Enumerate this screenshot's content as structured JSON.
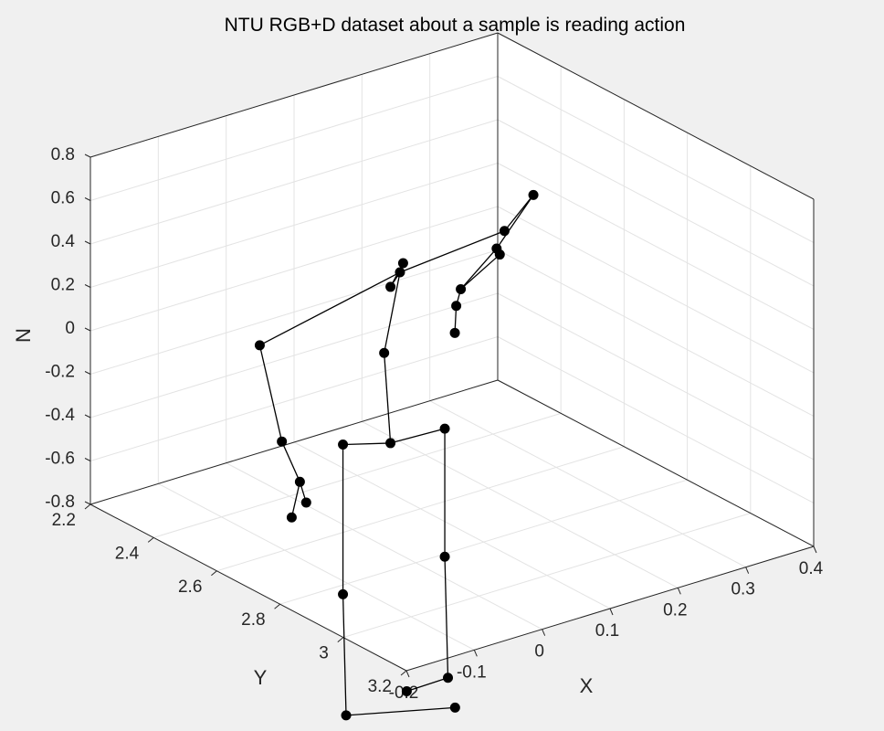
{
  "chart_data": {
    "type": "scatter3d",
    "title": "NTU RGB+D dataset about a sample is reading action",
    "xlabel": "X",
    "ylabel": "Y",
    "zlabel": "N",
    "xlim": [
      -0.2,
      0.4
    ],
    "ylim": [
      2.2,
      3.2
    ],
    "zlim": [
      -0.8,
      0.8
    ],
    "xticks": [
      "-0.2",
      "-0.1",
      "0",
      "0.1",
      "0.2",
      "0.3",
      "0.4"
    ],
    "yticks": [
      "2.2",
      "2.4",
      "2.6",
      "2.8",
      "3",
      "3.2"
    ],
    "zticks": [
      "-0.8",
      "-0.6",
      "-0.4",
      "-0.2",
      "0",
      "0.2",
      "0.4",
      "0.6",
      "0.8"
    ],
    "grid": true,
    "colors": {
      "background": "#f0f0f0",
      "axes_face": "#ffffff",
      "marker": "#000000",
      "line": "#000000",
      "grid": "#e3e3e3",
      "box": "#262626"
    },
    "joints": [
      {
        "x": 0.0,
        "y": 2.72,
        "z": -0.31
      },
      {
        "x": 0.0,
        "y": 2.7,
        "z": 0.09
      },
      {
        "x": 0.0,
        "y": 2.72,
        "z": 0.41
      },
      {
        "x": 0.0,
        "y": 2.76,
        "z": 0.55
      },
      {
        "x": -0.16,
        "y": 2.65,
        "z": 0.24
      },
      {
        "x": -0.16,
        "y": 2.72,
        "z": -0.15
      },
      {
        "x": -0.18,
        "y": 2.82,
        "z": -0.24
      },
      {
        "x": -0.18,
        "y": 2.84,
        "z": -0.32
      },
      {
        "x": 0.14,
        "y": 2.78,
        "z": 0.58
      },
      {
        "x": 0.15,
        "y": 2.85,
        "z": 0.79
      },
      {
        "x": 0.04,
        "y": 2.97,
        "z": 0.74
      },
      {
        "x": -0.05,
        "y": 3.05,
        "z": 0.7
      },
      {
        "x": -0.07,
        "y": 2.72,
        "z": -0.25
      },
      {
        "x": -0.07,
        "y": 2.72,
        "z": -0.94
      },
      {
        "x": -0.07,
        "y": 2.73,
        "z": -1.49
      },
      {
        "x": 0.03,
        "y": 2.86,
        "z": -1.45
      },
      {
        "x": 0.08,
        "y": 2.72,
        "z": -0.32
      },
      {
        "x": 0.08,
        "y": 2.72,
        "z": -0.91
      },
      {
        "x": 0.08,
        "y": 2.73,
        "z": -1.46
      },
      {
        "x": 0.01,
        "y": 2.75,
        "z": -1.44
      },
      {
        "x": 0.0,
        "y": 2.75,
        "z": 0.5
      },
      {
        "x": -0.08,
        "y": 3.1,
        "z": 0.69
      },
      {
        "x": -0.11,
        "y": 3.16,
        "z": 0.64
      },
      {
        "x": 0.04,
        "y": 2.98,
        "z": 0.72
      },
      {
        "x": -0.22,
        "y": 2.88,
        "z": -0.32
      }
    ],
    "bones": [
      [
        0,
        1
      ],
      [
        1,
        20
      ],
      [
        20,
        2
      ],
      [
        2,
        3
      ],
      [
        20,
        4
      ],
      [
        4,
        5
      ],
      [
        5,
        6
      ],
      [
        6,
        7
      ],
      [
        6,
        24
      ],
      [
        20,
        8
      ],
      [
        8,
        9
      ],
      [
        9,
        10
      ],
      [
        10,
        11
      ],
      [
        11,
        23
      ],
      [
        11,
        21
      ],
      [
        21,
        22
      ],
      [
        0,
        12
      ],
      [
        12,
        13
      ],
      [
        13,
        14
      ],
      [
        14,
        15
      ],
      [
        0,
        16
      ],
      [
        16,
        17
      ],
      [
        17,
        18
      ],
      [
        18,
        19
      ]
    ]
  }
}
